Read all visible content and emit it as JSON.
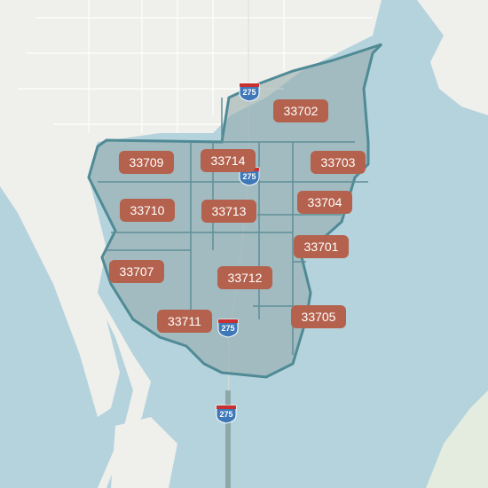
{
  "map": {
    "zip_labels": [
      "33702",
      "33709",
      "33714",
      "33703",
      "33710",
      "33713",
      "33704",
      "33701",
      "33707",
      "33712",
      "33705",
      "33711"
    ],
    "shields": [
      "275",
      "275",
      "275",
      "275"
    ]
  }
}
